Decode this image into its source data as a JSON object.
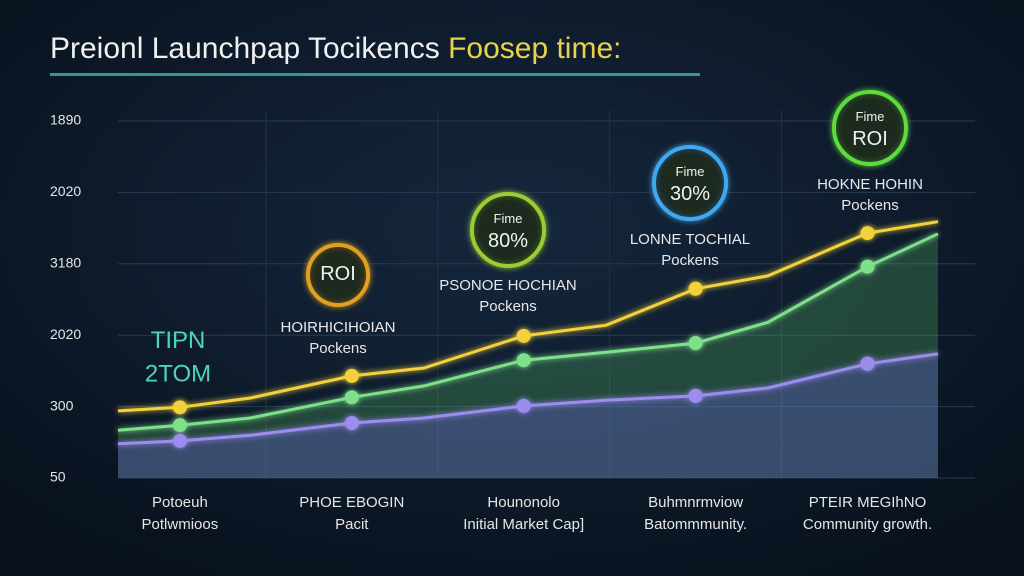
{
  "chart_data": {
    "type": "line",
    "title": "Preionl Launchpap Tocikencs",
    "title_highlight": "Foosep time:",
    "categories": [
      [
        "Potoeuh",
        "Potlwmioos"
      ],
      [
        "PHOE EBOGIN",
        "Pacit"
      ],
      [
        "Hounonolo",
        "Initial Market Cap]"
      ],
      [
        "Buhmnrmviow",
        "Batommmunity."
      ],
      [
        "PTEIR MEGIhNO",
        "Community growth."
      ]
    ],
    "x": [
      -0.36,
      0,
      0.41,
      1,
      1.42,
      2,
      2.48,
      3,
      3.42,
      4,
      4.41
    ],
    "xlim": [
      -0.36,
      4.41
    ],
    "ylim": [
      0,
      5
    ],
    "yticks": [
      {
        "value": 0,
        "label": "50"
      },
      {
        "value": 1,
        "label": "300"
      },
      {
        "value": 2,
        "label": "2020"
      },
      {
        "value": 3,
        "label": "3180"
      },
      {
        "value": 4,
        "label": "2020"
      },
      {
        "value": 5,
        "label": "1890"
      }
    ],
    "grid": true,
    "series": [
      {
        "color": "#f2d13a",
        "values": [
          0.94,
          0.99,
          1.12,
          1.43,
          1.54,
          1.99,
          2.14,
          2.65,
          2.83,
          3.43,
          3.59
        ]
      },
      {
        "color": "#7fe08a",
        "values": [
          0.67,
          0.74,
          0.84,
          1.13,
          1.29,
          1.65,
          1.76,
          1.89,
          2.18,
          2.96,
          3.42
        ]
      },
      {
        "color": "#9d8cf0",
        "values": [
          0.48,
          0.52,
          0.6,
          0.77,
          0.84,
          1.01,
          1.09,
          1.15,
          1.26,
          1.6,
          1.74
        ]
      }
    ],
    "annotations": [
      {
        "lines": [
          "TIPN",
          "2TOM"
        ],
        "color": "#4fd6b0"
      },
      {
        "lines": [
          "HOIRHICIHOIAN",
          "Pockens"
        ],
        "color": "#e8e8e8"
      },
      {
        "lines": [
          "PSONOE HOCHIAN",
          "Pockens"
        ],
        "color": "#e8e8e8"
      },
      {
        "lines": [
          "LONNE TOCHIAL",
          "Pockens"
        ],
        "color": "#e8e8e8"
      },
      {
        "lines": [
          "HOKNE HOHIN",
          "Pockens"
        ],
        "color": "#e8e8e8"
      }
    ],
    "badges": [
      {
        "lines": [
          "ROI"
        ],
        "color": "#e0a020"
      },
      {
        "lines": [
          "Fime",
          "80%"
        ],
        "color": "#9acd32"
      },
      {
        "lines": [
          "Fime",
          "30%"
        ],
        "color": "#3fa8f0"
      },
      {
        "lines": [
          "Fime",
          "ROI"
        ],
        "color": "#5fdc3c"
      }
    ]
  }
}
